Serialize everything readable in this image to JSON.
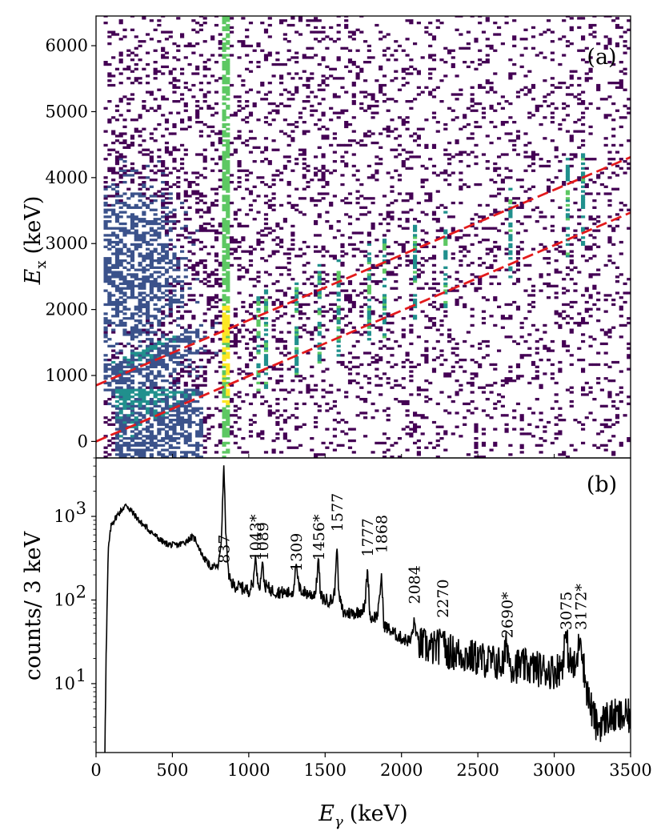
{
  "chart_data": [
    {
      "panel": "(a)",
      "type": "heatmap",
      "xlabel": "",
      "ylabel_main": "E",
      "ylabel_sub": "x",
      "ylabel_unit": "(keV)",
      "xlim": [
        0,
        3500
      ],
      "ylim": [
        -250,
        6450
      ],
      "yticks": [
        0,
        1000,
        2000,
        3000,
        4000,
        5000,
        6000
      ],
      "colormap": [
        "#440154",
        "#3b528b",
        "#21908d",
        "#5dc863",
        "#fde725"
      ],
      "density_notes": "gamma-gamma coincidence matrix; broad continuum centred near Egamma 200 keV, Ex 2500 keV; vertical ridges at gamma peak energies",
      "vertical_lines_keV": [
        837,
        1043,
        1089,
        1309,
        1456,
        1577,
        1777,
        1868,
        2084,
        2270,
        2690,
        3075,
        3172
      ],
      "diagonal_lines": [
        {
          "name": "upper",
          "color": "#e31a1c",
          "style": "dashed",
          "x": [
            0,
            3500
          ],
          "y": [
            850,
            4310
          ]
        },
        {
          "name": "lower",
          "color": "#e31a1c",
          "style": "dashed",
          "x": [
            0,
            3500
          ],
          "y": [
            0,
            3470
          ]
        }
      ]
    },
    {
      "panel": "(b)",
      "type": "line",
      "scale": "log",
      "xlabel_main": "E",
      "xlabel_sub": "γ",
      "xlabel_unit": "(keV)",
      "ylabel": "counts/ 3 keV",
      "xlim": [
        0,
        3500
      ],
      "ylim": [
        1.5,
        5000
      ],
      "xticks": [
        0,
        500,
        1000,
        1500,
        2000,
        2500,
        3000,
        3500
      ],
      "yticks": [
        {
          "value": 10,
          "label": "10",
          "exp": "1"
        },
        {
          "value": 100,
          "label": "10",
          "exp": "2"
        },
        {
          "value": 1000,
          "label": "10",
          "exp": "3"
        }
      ],
      "spectrum_outline": {
        "x": [
          0,
          55,
          60,
          80,
          100,
          150,
          200,
          220,
          260,
          300,
          350,
          400,
          450,
          500,
          550,
          600,
          620,
          650,
          680,
          700,
          750,
          800,
          820,
          837,
          850,
          870,
          900,
          950,
          1000,
          1030,
          1043,
          1056,
          1075,
          1089,
          1103,
          1150,
          1200,
          1250,
          1290,
          1309,
          1330,
          1380,
          1420,
          1440,
          1456,
          1470,
          1500,
          1550,
          1565,
          1577,
          1590,
          1620,
          1700,
          1760,
          1777,
          1795,
          1840,
          1855,
          1868,
          1885,
          1950,
          2000,
          2060,
          2084,
          2110,
          2200,
          2255,
          2270,
          2285,
          2400,
          2500,
          2600,
          2670,
          2690,
          2710,
          2800,
          2900,
          3000,
          3050,
          3075,
          3100,
          3140,
          3172,
          3200,
          3230,
          3280,
          3350,
          3400,
          3500
        ],
        "y": [
          0,
          0,
          5,
          400,
          800,
          1100,
          1380,
          1220,
          1000,
          820,
          680,
          560,
          480,
          450,
          460,
          520,
          560,
          540,
          400,
          330,
          250,
          250,
          500,
          4200,
          600,
          180,
          150,
          140,
          130,
          160,
          350,
          180,
          150,
          300,
          150,
          130,
          125,
          120,
          125,
          270,
          135,
          120,
          115,
          130,
          330,
          110,
          100,
          100,
          140,
          500,
          110,
          70,
          70,
          80,
          250,
          60,
          65,
          90,
          210,
          50,
          40,
          35,
          32,
          55,
          30,
          26,
          28,
          45,
          25,
          22,
          20,
          18,
          17,
          32,
          17,
          16,
          15,
          14,
          16,
          40,
          18,
          15,
          38,
          12,
          6,
          3,
          4,
          4,
          4
        ]
      },
      "peak_labels": [
        {
          "energy": 837,
          "text": "837",
          "count": 250
        },
        {
          "energy": 1043,
          "text": "1043*",
          "count": 270
        },
        {
          "energy": 1089,
          "text": "1089",
          "count": 270
        },
        {
          "energy": 1309,
          "text": "1309",
          "count": 200
        },
        {
          "energy": 1456,
          "text": "1456*",
          "count": 270
        },
        {
          "energy": 1577,
          "text": "1577",
          "count": 600
        },
        {
          "energy": 1777,
          "text": "1777",
          "count": 300
        },
        {
          "energy": 1868,
          "text": "1868",
          "count": 330
        },
        {
          "energy": 2084,
          "text": "2084",
          "count": 82
        },
        {
          "energy": 2270,
          "text": "2270",
          "count": 56
        },
        {
          "energy": 2690,
          "text": "2690*",
          "count": 32
        },
        {
          "energy": 3075,
          "text": "3075",
          "count": 40
        },
        {
          "energy": 3172,
          "text": "3172*",
          "count": 40
        }
      ]
    }
  ]
}
